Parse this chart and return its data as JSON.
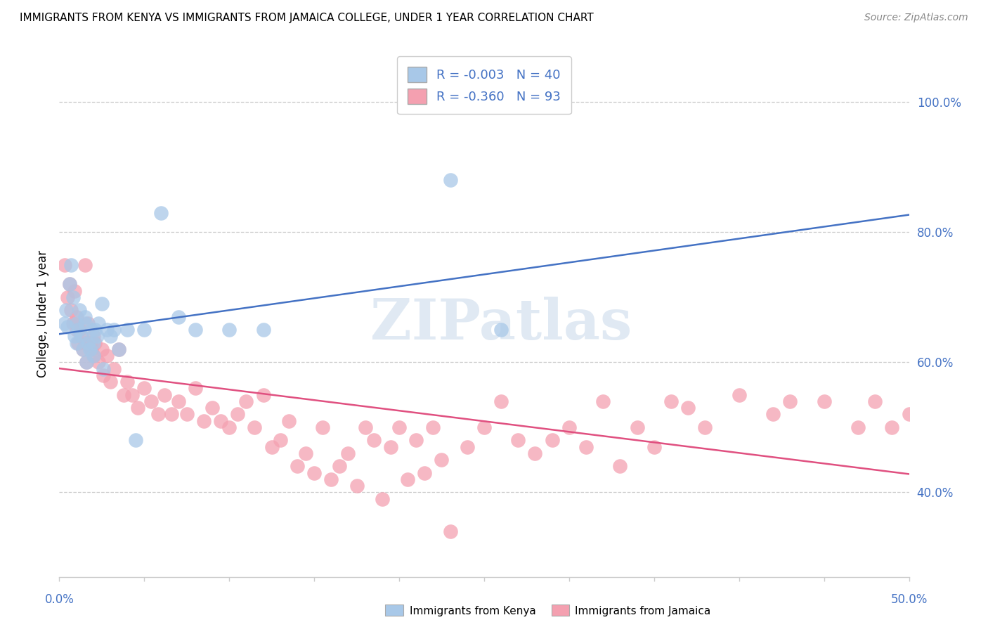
{
  "title": "IMMIGRANTS FROM KENYA VS IMMIGRANTS FROM JAMAICA COLLEGE, UNDER 1 YEAR CORRELATION CHART",
  "source": "Source: ZipAtlas.com",
  "ylabel": "College, Under 1 year",
  "color_kenya": "#a8c8e8",
  "color_jamaica": "#f4a0b0",
  "color_kenya_line": "#4472c4",
  "color_jamaica_line": "#e05080",
  "color_axis": "#4472c4",
  "watermark": "ZIPatlas",
  "kenya_R": -0.003,
  "kenya_N": 40,
  "jamaica_R": -0.36,
  "jamaica_N": 93,
  "xlim": [
    0.0,
    50.0
  ],
  "ylim": [
    27.0,
    108.0
  ],
  "yticks": [
    40.0,
    60.0,
    80.0,
    100.0
  ],
  "ytick_labels": [
    "40.0%",
    "60.0%",
    "80.0%",
    "100.0%"
  ],
  "kenya_x": [
    0.3,
    0.4,
    0.5,
    0.6,
    0.7,
    0.8,
    0.9,
    1.0,
    1.0,
    1.1,
    1.2,
    1.3,
    1.4,
    1.5,
    1.5,
    1.6,
    1.7,
    1.8,
    1.9,
    2.0,
    2.0,
    2.1,
    2.2,
    2.3,
    2.5,
    2.6,
    2.8,
    3.0,
    3.2,
    3.5,
    4.0,
    4.5,
    5.0,
    6.0,
    7.0,
    8.0,
    10.0,
    12.0,
    23.0,
    26.0
  ],
  "kenya_y": [
    66.0,
    68.0,
    65.5,
    72.0,
    75.0,
    70.0,
    64.0,
    66.0,
    63.0,
    65.0,
    68.0,
    64.0,
    62.0,
    67.0,
    66.0,
    60.0,
    63.0,
    62.0,
    65.0,
    61.0,
    63.0,
    65.0,
    64.0,
    66.0,
    69.0,
    59.0,
    65.0,
    64.0,
    65.0,
    62.0,
    65.0,
    48.0,
    65.0,
    83.0,
    67.0,
    65.0,
    65.0,
    65.0,
    88.0,
    65.0
  ],
  "jamaica_x": [
    0.3,
    0.5,
    0.6,
    0.7,
    0.8,
    0.9,
    1.0,
    1.0,
    1.1,
    1.2,
    1.3,
    1.4,
    1.5,
    1.5,
    1.6,
    1.7,
    1.8,
    1.9,
    2.0,
    2.0,
    2.1,
    2.3,
    2.5,
    2.6,
    2.8,
    3.0,
    3.2,
    3.5,
    3.8,
    4.0,
    4.3,
    4.6,
    5.0,
    5.4,
    5.8,
    6.2,
    6.6,
    7.0,
    7.5,
    8.0,
    8.5,
    9.0,
    9.5,
    10.0,
    10.5,
    11.0,
    11.5,
    12.0,
    12.5,
    13.0,
    13.5,
    14.0,
    14.5,
    15.0,
    15.5,
    16.0,
    16.5,
    17.0,
    17.5,
    18.0,
    18.5,
    19.0,
    19.5,
    20.0,
    20.5,
    21.0,
    21.5,
    22.0,
    22.5,
    23.0,
    24.0,
    25.0,
    26.0,
    27.0,
    28.0,
    29.0,
    30.0,
    31.0,
    32.0,
    33.0,
    34.0,
    35.0,
    36.0,
    37.0,
    38.0,
    40.0,
    42.0,
    43.0,
    45.0,
    47.0,
    48.0,
    49.0,
    50.0
  ],
  "jamaica_y": [
    75.0,
    70.0,
    72.0,
    68.0,
    66.0,
    71.0,
    65.0,
    67.0,
    63.0,
    65.0,
    64.0,
    62.0,
    75.0,
    63.0,
    60.0,
    66.0,
    63.0,
    62.0,
    64.0,
    61.0,
    63.0,
    60.0,
    62.0,
    58.0,
    61.0,
    57.0,
    59.0,
    62.0,
    55.0,
    57.0,
    55.0,
    53.0,
    56.0,
    54.0,
    52.0,
    55.0,
    52.0,
    54.0,
    52.0,
    56.0,
    51.0,
    53.0,
    51.0,
    50.0,
    52.0,
    54.0,
    50.0,
    55.0,
    47.0,
    48.0,
    51.0,
    44.0,
    46.0,
    43.0,
    50.0,
    42.0,
    44.0,
    46.0,
    41.0,
    50.0,
    48.0,
    39.0,
    47.0,
    50.0,
    42.0,
    48.0,
    43.0,
    50.0,
    45.0,
    34.0,
    47.0,
    50.0,
    54.0,
    48.0,
    46.0,
    48.0,
    50.0,
    47.0,
    54.0,
    44.0,
    50.0,
    47.0,
    54.0,
    53.0,
    50.0,
    55.0,
    52.0,
    54.0,
    54.0,
    50.0,
    54.0,
    50.0,
    52.0
  ]
}
